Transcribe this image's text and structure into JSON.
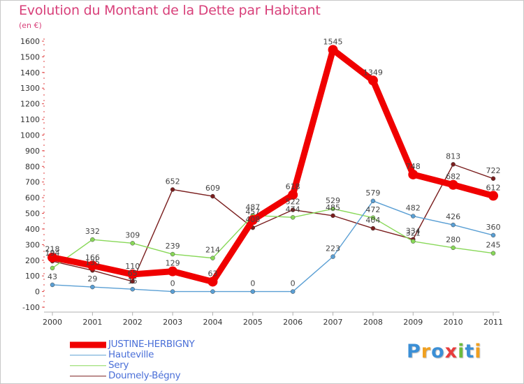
{
  "header": {
    "title": "Evolution du Montant de la Dette par Habitant",
    "subtitle": "(en €)"
  },
  "logo": {
    "text": "Proxiti",
    "letters": [
      "P",
      "r",
      "o",
      "x",
      "i",
      "t",
      "i"
    ],
    "colors": [
      "#3b8fd6",
      "#f0a020",
      "#3b8fd6",
      "#e83c3c",
      "#6cbb3c",
      "#3b8fd6",
      "#f0a020"
    ]
  },
  "chart_data": {
    "type": "line",
    "title": "Evolution du Montant de la Dette par Habitant",
    "subtitle": "(en €)",
    "xlabel": "",
    "ylabel": "",
    "categories": [
      "2000",
      "2001",
      "2002",
      "2003",
      "2004",
      "2005",
      "2006",
      "2007",
      "2008",
      "2009",
      "2010",
      "2011"
    ],
    "ylim": [
      -100,
      1600
    ],
    "yticks": [
      -100,
      0,
      100,
      200,
      300,
      400,
      500,
      600,
      700,
      800,
      900,
      1000,
      1100,
      1200,
      1300,
      1400,
      1500,
      1600
    ],
    "grid": false,
    "legend": "bottom-left",
    "series": [
      {
        "name": "Doumely-Bégny",
        "color": "#7a1e1e",
        "values": [
          194,
          135,
          65,
          652,
          609,
          408,
          522,
          485,
          404,
          334,
          813,
          722
        ],
        "labels": [
          "194",
          "135",
          "65",
          "652",
          "609",
          "408",
          "522",
          "485",
          "404",
          "334",
          "813",
          "722"
        ]
      },
      {
        "name": "Sery",
        "color": "#88d858",
        "values": [
          150,
          332,
          309,
          239,
          214,
          487,
          474,
          529,
          472,
          321,
          280,
          245
        ],
        "labels": [
          "",
          "332",
          "309",
          "239",
          "214",
          "487",
          "474",
          "529",
          "472",
          "321",
          "280",
          "245"
        ]
      },
      {
        "name": "Hauteville",
        "color": "#5a9fd4",
        "values": [
          43,
          29,
          15,
          0,
          0,
          0,
          0,
          223,
          579,
          482,
          426,
          360
        ],
        "labels": [
          "43",
          "29",
          "15",
          "0",
          "",
          "0",
          "0",
          "223",
          "579",
          "482",
          "426",
          "360"
        ]
      },
      {
        "name": "JUSTINE-HERBIGNY",
        "color": "#f00000",
        "values": [
          218,
          166,
          110,
          129,
          63,
          457,
          618,
          1545,
          1349,
          748,
          682,
          612
        ],
        "labels": [
          "218",
          "166",
          "110",
          "129",
          "63",
          "457",
          "618",
          "1545",
          "1349",
          "748",
          "682",
          "612"
        ]
      }
    ],
    "legend_entries": [
      "JUSTINE-HERBIGNY",
      "Hauteville",
      "Sery",
      "Doumely-Bégny"
    ]
  }
}
